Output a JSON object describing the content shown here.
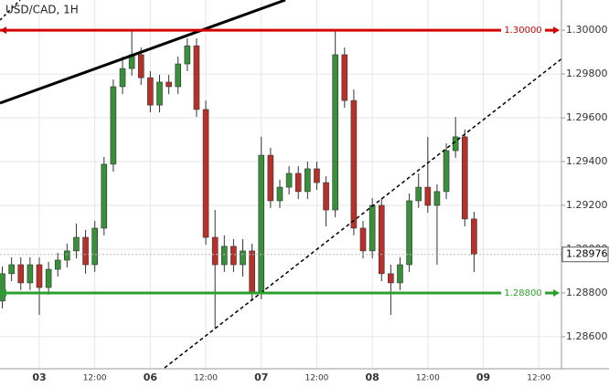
{
  "chart_data": {
    "type": "candlestick",
    "title": "USD/CAD, 1H",
    "up_color": "#3a8f3a",
    "down_color": "#b8302a",
    "xlim": [
      -8.5,
      112.9
    ],
    "ylim": [
      1.28458,
      1.30138
    ],
    "xticks": [
      {
        "value": 0,
        "label": "03"
      },
      {
        "value": 12,
        "label": "12:00"
      },
      {
        "value": 24,
        "label": "06"
      },
      {
        "value": 36,
        "label": "12:00"
      },
      {
        "value": 48,
        "label": "07"
      },
      {
        "value": 60,
        "label": "12:00"
      },
      {
        "value": 72,
        "label": "08"
      },
      {
        "value": 84,
        "label": "12:00"
      },
      {
        "value": 96,
        "label": "09"
      },
      {
        "value": 108,
        "label": "12:00"
      }
    ],
    "yticks": [
      {
        "value": 1.3,
        "label": "1.30000"
      },
      {
        "value": 1.298,
        "label": "1.29800"
      },
      {
        "value": 1.296,
        "label": "1.29600"
      },
      {
        "value": 1.294,
        "label": "1.29400"
      },
      {
        "value": 1.292,
        "label": "1.29200"
      },
      {
        "value": 1.29,
        "label": "1.29000"
      },
      {
        "value": 1.288,
        "label": "1.28800"
      },
      {
        "value": 1.286,
        "label": "1.28600"
      }
    ],
    "levels": [
      {
        "value": 1.3,
        "label": "1.30000",
        "color": "#d40000"
      },
      {
        "value": 1.288,
        "label": "1.28800",
        "color": "#2ca02c"
      }
    ],
    "last_price": {
      "value": 1.28976,
      "label": "1.28976"
    },
    "x": [
      -8,
      -6,
      -4,
      -2,
      0,
      2,
      4,
      6,
      8,
      10,
      12,
      14,
      16,
      18,
      20,
      22,
      24,
      26,
      28,
      30,
      32,
      34,
      36,
      38,
      40,
      42,
      44,
      46,
      48,
      50,
      52,
      54,
      56,
      58,
      60,
      62,
      64,
      66,
      68,
      70,
      72,
      74,
      76,
      78,
      80,
      82,
      84,
      86,
      88,
      90,
      92,
      94
    ],
    "open": [
      1.28763,
      1.28888,
      1.28929,
      1.28846,
      1.28929,
      1.28825,
      1.28908,
      1.2895,
      1.28992,
      1.29054,
      1.28929,
      1.29096,
      1.29388,
      1.29742,
      1.29825,
      1.29888,
      1.29783,
      1.29658,
      1.29763,
      1.29742,
      1.29846,
      1.29929,
      1.29638,
      1.29054,
      1.28929,
      1.29013,
      1.28929,
      1.28992,
      1.28804,
      1.29429,
      1.29221,
      1.29283,
      1.29346,
      1.29263,
      1.29367,
      1.29304,
      1.29179,
      1.29888,
      1.29679,
      1.29096,
      1.28992,
      1.292,
      1.28888,
      1.28846,
      1.28929,
      1.29221,
      1.29283,
      1.292,
      1.29263,
      1.2945,
      1.29513,
      1.29138
    ],
    "high": [
      1.28921,
      1.28963,
      1.28963,
      1.28963,
      1.28963,
      1.28942,
      1.28983,
      1.29025,
      1.29117,
      1.29088,
      1.29129,
      1.29421,
      1.29775,
      1.29879,
      1.3,
      1.29921,
      1.29813,
      1.29796,
      1.29796,
      1.29879,
      1.29963,
      1.29963,
      1.29679,
      1.29179,
      1.29063,
      1.29046,
      1.29046,
      1.29025,
      1.29513,
      1.29463,
      1.29317,
      1.29379,
      1.29379,
      1.294,
      1.294,
      1.29333,
      1.3,
      1.29921,
      1.29729,
      1.29129,
      1.29233,
      1.29233,
      1.28929,
      1.28963,
      1.29254,
      1.29346,
      1.29513,
      1.29296,
      1.29483,
      1.29604,
      1.29546,
      1.29171
    ],
    "low": [
      1.28729,
      1.28854,
      1.28813,
      1.28813,
      1.287,
      1.28792,
      1.28875,
      1.28917,
      1.28958,
      1.28888,
      1.28896,
      1.29063,
      1.29354,
      1.29708,
      1.29792,
      1.2975,
      1.29625,
      1.29625,
      1.29708,
      1.29708,
      1.29813,
      1.29604,
      1.29021,
      1.28638,
      1.28896,
      1.28896,
      1.28875,
      1.28763,
      1.28771,
      1.29188,
      1.29188,
      1.2925,
      1.29229,
      1.29229,
      1.29271,
      1.29104,
      1.29146,
      1.29646,
      1.29063,
      1.28958,
      1.28958,
      1.28854,
      1.287,
      1.28813,
      1.28896,
      1.29188,
      1.29167,
      1.28929,
      1.29229,
      1.29417,
      1.29104,
      1.28896
    ],
    "close": [
      1.28888,
      1.28929,
      1.28846,
      1.28929,
      1.28825,
      1.28908,
      1.2895,
      1.28992,
      1.29054,
      1.28929,
      1.29096,
      1.29388,
      1.29742,
      1.29825,
      1.29888,
      1.29783,
      1.29658,
      1.29763,
      1.29742,
      1.29846,
      1.29929,
      1.29638,
      1.29054,
      1.28929,
      1.29013,
      1.28929,
      1.28992,
      1.28804,
      1.29429,
      1.29221,
      1.29283,
      1.29346,
      1.29263,
      1.29367,
      1.29304,
      1.29179,
      1.29888,
      1.29679,
      1.29096,
      1.28992,
      1.292,
      1.28888,
      1.28846,
      1.28929,
      1.29221,
      1.29283,
      1.292,
      1.29263,
      1.2945,
      1.29513,
      1.29138,
      1.28976
    ]
  }
}
